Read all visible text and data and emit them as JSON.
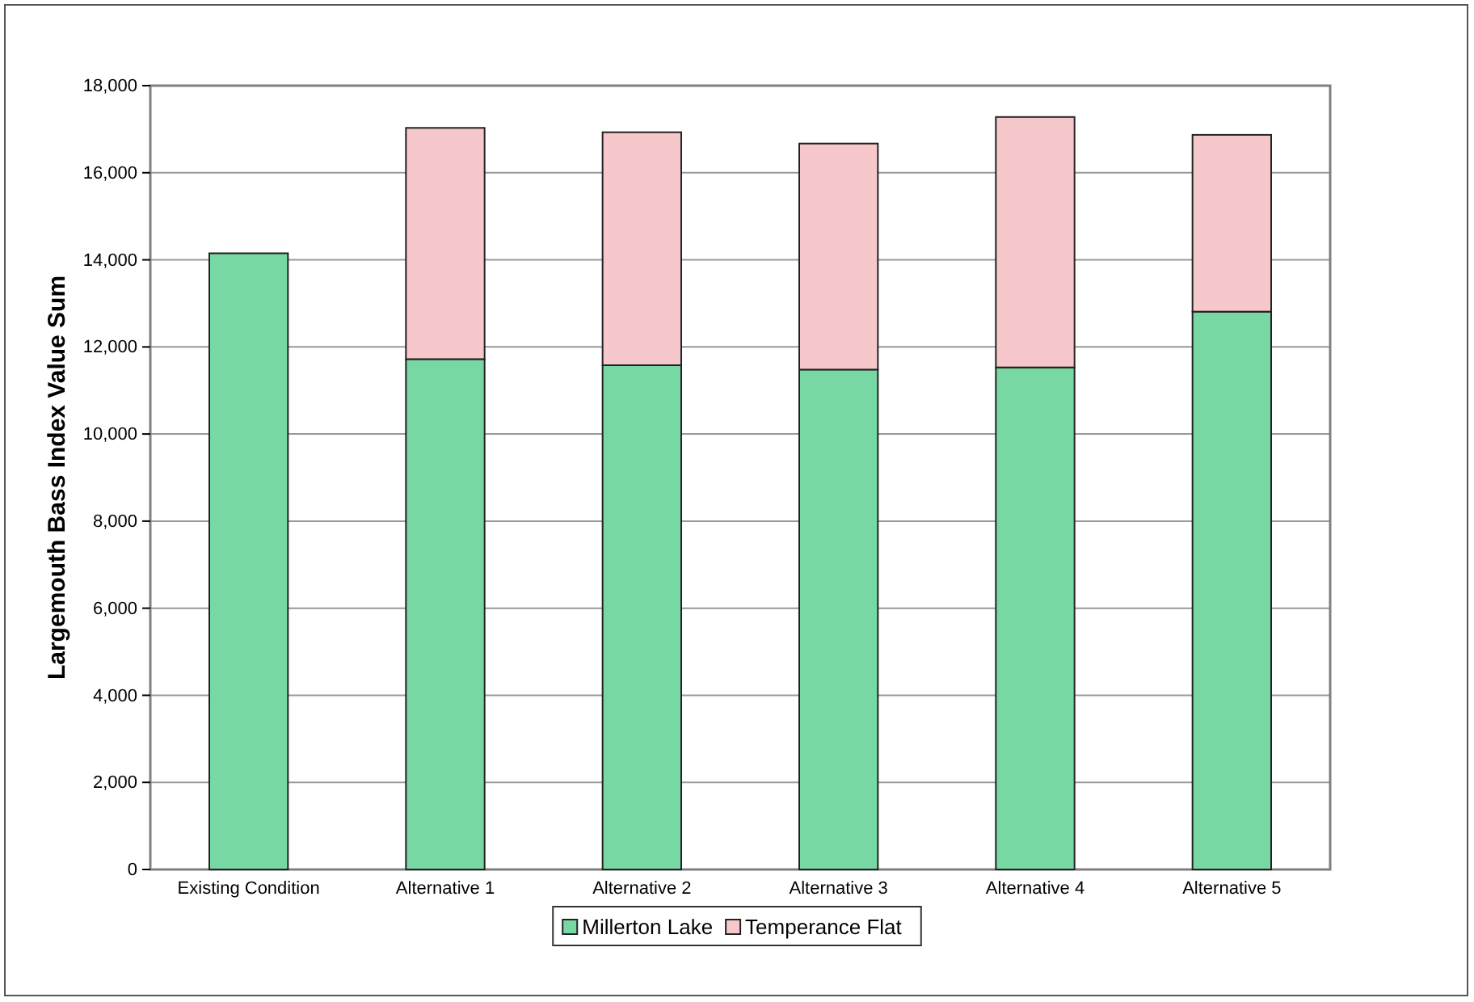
{
  "chart_data": {
    "type": "bar",
    "stacked": true,
    "ylabel": "Largemouth Bass Index Value Sum",
    "categories": [
      "Existing Condition",
      "Alternative 1",
      "Alternative 2",
      "Alternative 3",
      "Alternative 4",
      "Alternative 5"
    ],
    "series": [
      {
        "name": "Millerton Lake",
        "color": "#78d8a4",
        "values": [
          14150,
          11720,
          11580,
          11480,
          11530,
          12810
        ]
      },
      {
        "name": "Temperance Flat",
        "color": "#f6c8cc",
        "values": [
          null,
          5310,
          5350,
          5190,
          5750,
          4060
        ]
      }
    ],
    "ylim": [
      0,
      18000
    ],
    "yticks": [
      {
        "value": 0,
        "label": "0"
      },
      {
        "value": 2000,
        "label": "2,000"
      },
      {
        "value": 4000,
        "label": "4,000"
      },
      {
        "value": 6000,
        "label": "6,000"
      },
      {
        "value": 8000,
        "label": "8,000"
      },
      {
        "value": 10000,
        "label": "10,000"
      },
      {
        "value": 12000,
        "label": "12,000"
      },
      {
        "value": 14000,
        "label": "14,000"
      },
      {
        "value": 16000,
        "label": "16,000"
      },
      {
        "value": 18000,
        "label": "18,000"
      }
    ],
    "grid": "y",
    "legend": "bottom"
  }
}
